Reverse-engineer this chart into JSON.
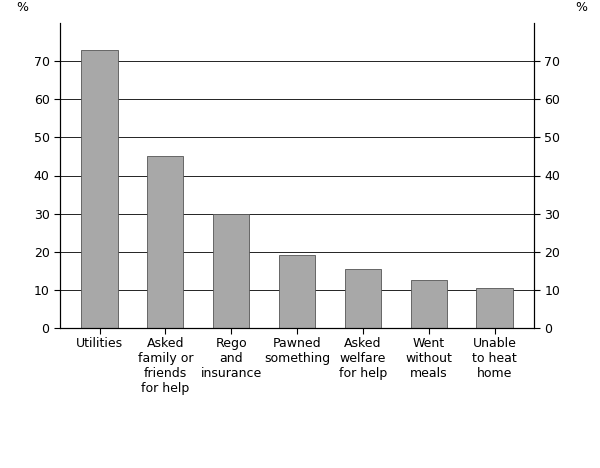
{
  "categories": [
    "Utilities",
    "Asked\nfamily or\nfriends\nfor help",
    "Rego\nand\ninsurance",
    "Pawned\nsomething",
    "Asked\nwelfare\nfor help",
    "Went\nwithout\nmeals",
    "Unable\nto heat\nhome"
  ],
  "values": [
    73,
    45,
    30,
    19,
    15.5,
    12.5,
    10.5
  ],
  "bar_color": "#a8a8a8",
  "bar_edge_color": "#555555",
  "ylim": [
    0,
    80
  ],
  "yticks": [
    0,
    10,
    20,
    30,
    40,
    50,
    60,
    70
  ],
  "ylabel_left": "%",
  "ylabel_right": "%",
  "background_color": "#ffffff",
  "grid_color": "#000000",
  "bar_width": 0.55,
  "tick_fontsize": 9,
  "label_fontsize": 9
}
